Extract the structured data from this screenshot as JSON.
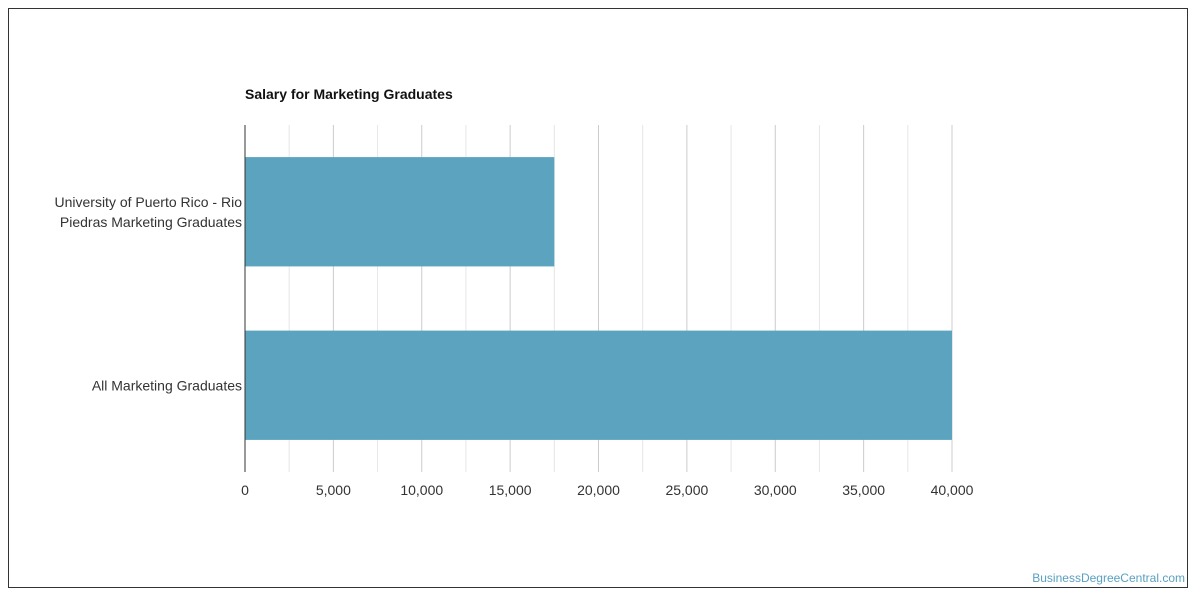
{
  "chart_data": {
    "type": "bar",
    "orientation": "horizontal",
    "title": "Salary for Marketing Graduates",
    "categories": [
      [
        "University of Puerto Rico - Rio",
        "Piedras Marketing Graduates"
      ],
      [
        "All Marketing Graduates"
      ]
    ],
    "values": [
      17500,
      40000
    ],
    "xlim": [
      0,
      40000
    ],
    "x_ticks": [
      "0",
      "5,000",
      "10,000",
      "15,000",
      "20,000",
      "25,000",
      "30,000",
      "35,000",
      "40,000"
    ],
    "grid": true,
    "legend": "none",
    "bar_color": "#5ba3be"
  },
  "watermark": "BusinessDegreeCentral.com"
}
